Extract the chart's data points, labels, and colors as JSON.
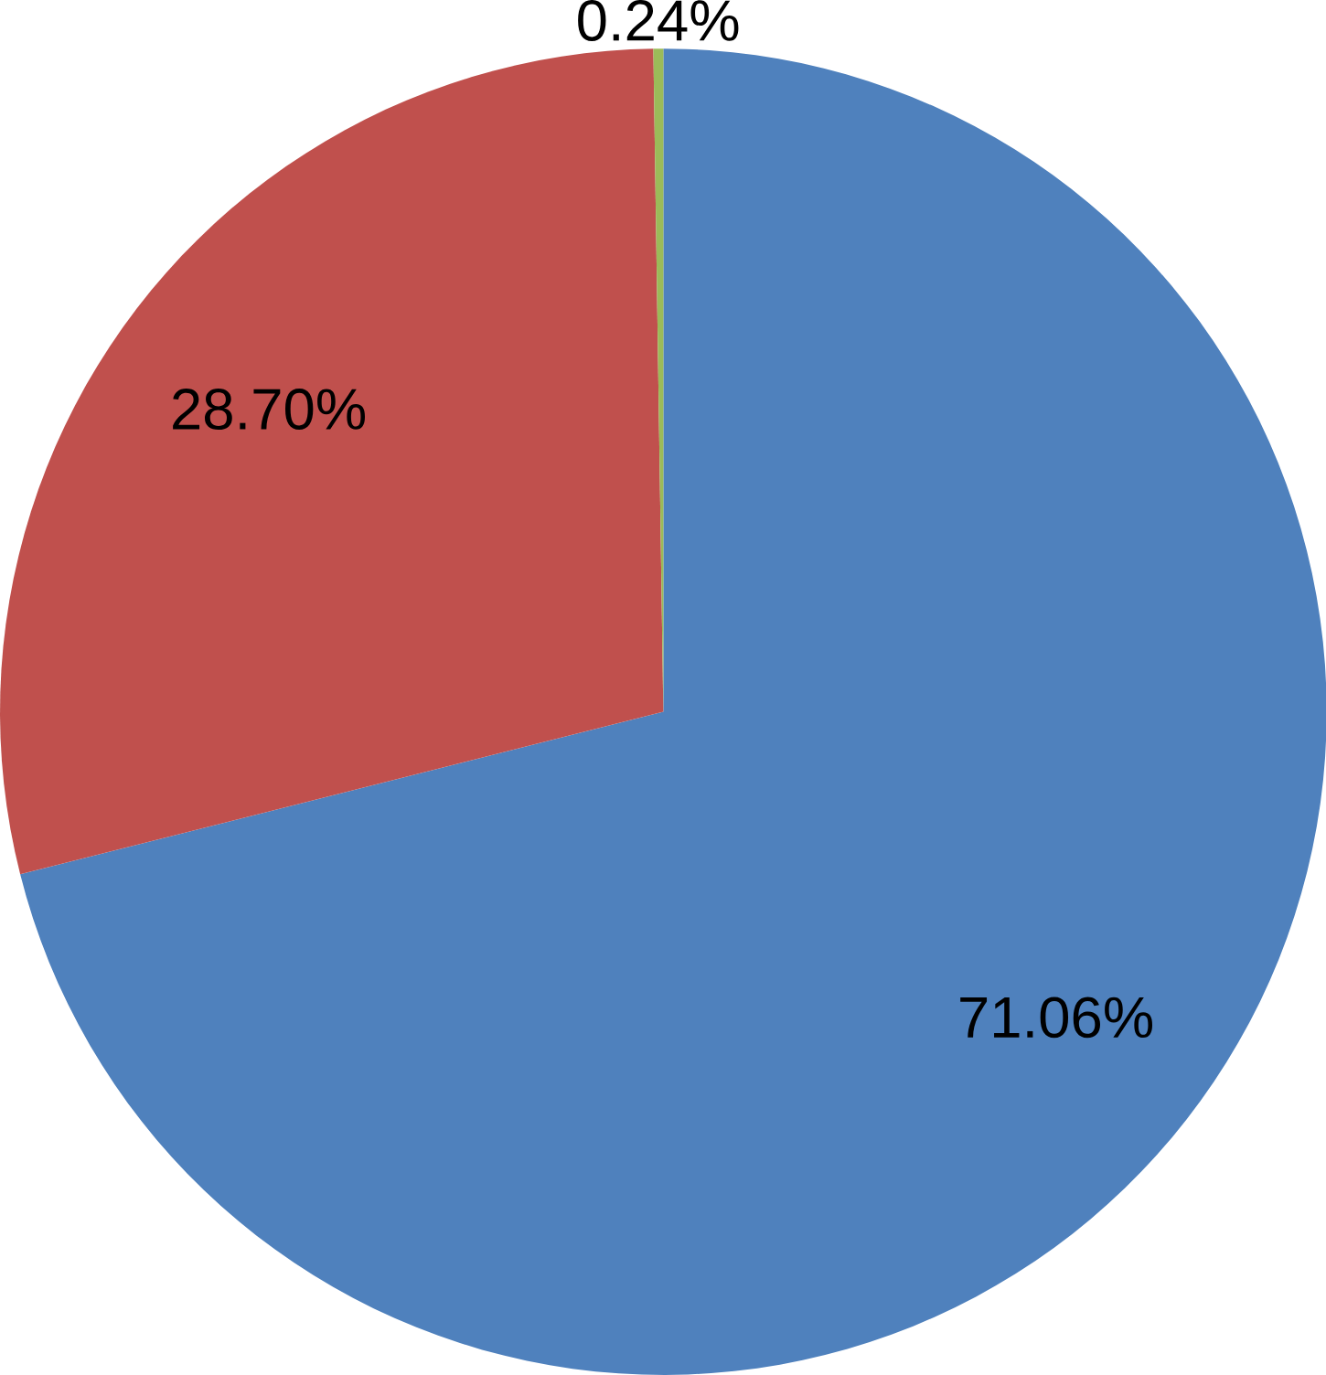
{
  "chart_data": {
    "type": "pie",
    "categories": [
      null,
      null,
      null
    ],
    "values": [
      71.06,
      28.7,
      0.24
    ],
    "colors": [
      "#4f81bd",
      "#c0504d",
      "#9bbb59"
    ],
    "value_labels": [
      "71.06%",
      "28.70%",
      "0.24%"
    ]
  }
}
